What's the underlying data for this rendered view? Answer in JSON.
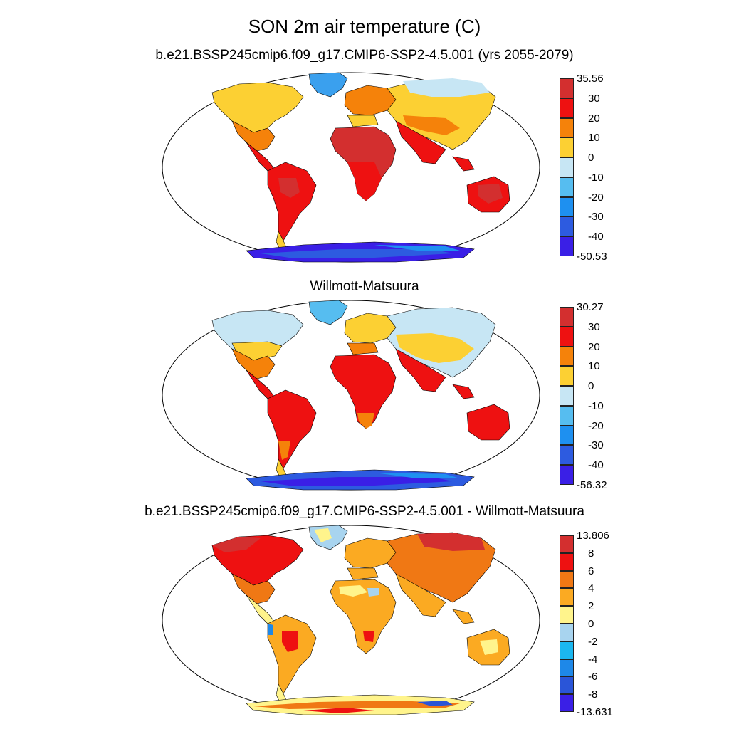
{
  "title": "SON 2m air temperature (C)",
  "panels": [
    {
      "subtitle": "b.e21.BSSP245cmip6.f09_g17.CMIP6-SSP2-4.5.001 (yrs 2055-2079)",
      "colorbar": {
        "labels": [
          "35.56",
          "30",
          "20",
          "10",
          "0",
          "-10",
          "-20",
          "-30",
          "-40",
          "-50.53"
        ],
        "colors": [
          "#d32f2f",
          "#ee1111",
          "#f5820a",
          "#fcd033",
          "#c7e6f4",
          "#56bdf0",
          "#1e90f0",
          "#2d5be0",
          "#3a1fe6"
        ]
      }
    },
    {
      "subtitle": "Willmott-Matsuura",
      "colorbar": {
        "labels": [
          "30.27",
          "30",
          "20",
          "10",
          "0",
          "-10",
          "-20",
          "-30",
          "-40",
          "-56.32"
        ],
        "colors": [
          "#d32f2f",
          "#ee1111",
          "#f5820a",
          "#fcd033",
          "#c7e6f4",
          "#56bdf0",
          "#1e90f0",
          "#2d5be0",
          "#3a1fe6"
        ]
      }
    },
    {
      "subtitle": "b.e21.BSSP245cmip6.f09_g17.CMIP6-SSP2-4.5.001 - Willmott-Matsuura",
      "colorbar": {
        "labels": [
          "13.806",
          "8",
          "6",
          "4",
          "2",
          "0",
          "-2",
          "-4",
          "-6",
          "-8",
          "-13.631"
        ],
        "colors": [
          "#d32f2f",
          "#ee1111",
          "#f07814",
          "#fbaa22",
          "#fff48c",
          "#a8d4ef",
          "#1bb7f0",
          "#1e88e8",
          "#2a55d8",
          "#3a1fe6"
        ]
      }
    }
  ]
}
